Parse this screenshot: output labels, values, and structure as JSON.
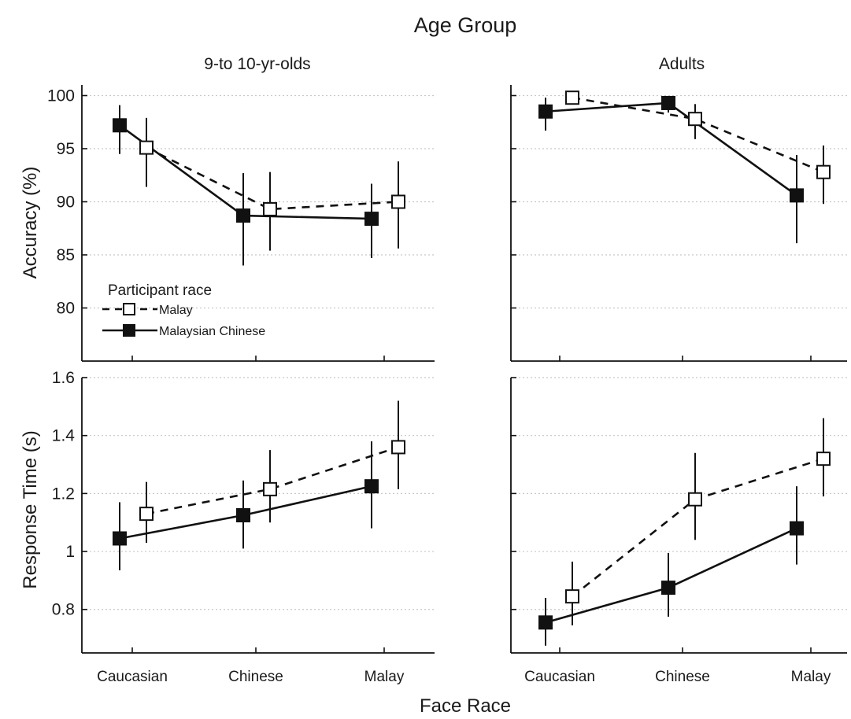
{
  "figure": {
    "title": "Age Group",
    "xlabel": "Face Race",
    "legend": {
      "title": "Participant race",
      "entries": [
        "Malay",
        "Malaysian Chinese"
      ]
    }
  },
  "chart_data": [
    {
      "type": "line",
      "panel_title": "9-to 10-yr-olds",
      "ylabel": "Accuracy (%)",
      "ylim": [
        75,
        101
      ],
      "yticks": [
        "80",
        "85",
        "90",
        "95",
        "100"
      ],
      "categories": [
        "Caucasian",
        "Chinese",
        "Malay"
      ],
      "grid": "horizontal dotted",
      "legend_position": "lower-left",
      "series": [
        {
          "name": "Malay",
          "style": "dashed",
          "marker": "open-square",
          "values": [
            95.1,
            89.3,
            90.0
          ],
          "err_low": [
            91.4,
            85.4,
            85.6
          ],
          "err_high": [
            97.9,
            92.8,
            93.8
          ]
        },
        {
          "name": "Malaysian Chinese",
          "style": "solid",
          "marker": "filled-square",
          "values": [
            97.2,
            88.7,
            88.4
          ],
          "err_low": [
            94.5,
            84.0,
            84.7
          ],
          "err_high": [
            99.1,
            92.7,
            91.7
          ]
        }
      ]
    },
    {
      "type": "line",
      "panel_title": "Adults",
      "ylabel": "",
      "ylim": [
        75,
        101
      ],
      "yticks": [],
      "categories": [
        "Caucasian",
        "Chinese",
        "Malay"
      ],
      "grid": "horizontal dotted",
      "series": [
        {
          "name": "Malay",
          "style": "dashed",
          "marker": "open-square",
          "values": [
            99.8,
            97.8,
            92.8
          ],
          "err_low": [
            99.8,
            95.9,
            89.8
          ],
          "err_high": [
            99.8,
            99.2,
            95.3
          ]
        },
        {
          "name": "Malaysian Chinese",
          "style": "solid",
          "marker": "filled-square",
          "values": [
            98.5,
            99.3,
            90.6
          ],
          "err_low": [
            96.7,
            98.4,
            86.1
          ],
          "err_high": [
            99.8,
            99.8,
            94.4
          ]
        }
      ]
    },
    {
      "type": "line",
      "panel_title": "",
      "ylabel": "Response Time (s)",
      "ylim": [
        0.65,
        1.6
      ],
      "yticks": [
        "0.8",
        "1",
        "1.2",
        "1.4",
        "1.6"
      ],
      "categories": [
        "Caucasian",
        "Chinese",
        "Malay"
      ],
      "grid": "horizontal dotted",
      "series": [
        {
          "name": "Malay",
          "style": "dashed",
          "marker": "open-square",
          "values": [
            1.13,
            1.215,
            1.36
          ],
          "err_low": [
            1.03,
            1.1,
            1.215
          ],
          "err_high": [
            1.24,
            1.35,
            1.52
          ]
        },
        {
          "name": "Malaysian Chinese",
          "style": "solid",
          "marker": "filled-square",
          "values": [
            1.045,
            1.125,
            1.225
          ],
          "err_low": [
            0.935,
            1.01,
            1.08
          ],
          "err_high": [
            1.17,
            1.245,
            1.38
          ]
        }
      ]
    },
    {
      "type": "line",
      "panel_title": "",
      "ylabel": "",
      "ylim": [
        0.65,
        1.6
      ],
      "yticks": [],
      "categories": [
        "Caucasian",
        "Chinese",
        "Malay"
      ],
      "grid": "horizontal dotted",
      "series": [
        {
          "name": "Malay",
          "style": "dashed",
          "marker": "open-square",
          "values": [
            0.845,
            1.18,
            1.32
          ],
          "err_low": [
            0.745,
            1.04,
            1.19
          ],
          "err_high": [
            0.965,
            1.34,
            1.46
          ]
        },
        {
          "name": "Malaysian Chinese",
          "style": "solid",
          "marker": "filled-square",
          "values": [
            0.755,
            0.875,
            1.08
          ],
          "err_low": [
            0.675,
            0.775,
            0.955
          ],
          "err_high": [
            0.84,
            0.995,
            1.225
          ]
        }
      ]
    }
  ]
}
